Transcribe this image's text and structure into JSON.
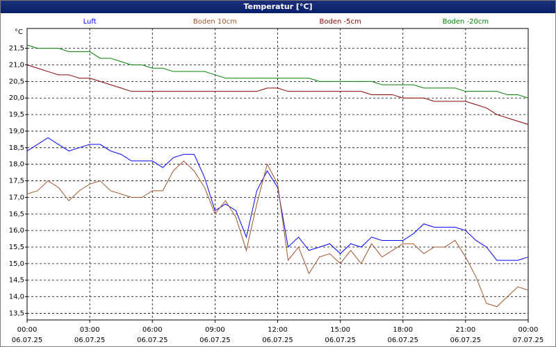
{
  "chart_data": {
    "type": "line",
    "title": "Temperatur [°C]",
    "y_unit": "°C",
    "x": [
      0,
      0.5,
      1,
      1.5,
      2,
      2.5,
      3,
      3.5,
      4,
      4.5,
      5,
      5.5,
      6,
      6.5,
      7,
      7.5,
      8,
      8.5,
      9,
      9.5,
      10,
      10.5,
      11,
      11.5,
      12,
      12.5,
      13,
      13.5,
      14,
      14.5,
      15,
      15.5,
      16,
      16.5,
      17,
      17.5,
      18,
      18.5,
      19,
      19.5,
      20,
      20.5,
      21,
      21.5,
      22,
      22.5,
      23,
      23.5,
      24
    ],
    "xlim": [
      0,
      24
    ],
    "xticks": [
      {
        "value": 0,
        "label": "00:00"
      },
      {
        "value": 3,
        "label": "03:00"
      },
      {
        "value": 6,
        "label": "06:00"
      },
      {
        "value": 9,
        "label": "09:00"
      },
      {
        "value": 12,
        "label": "12:00"
      },
      {
        "value": 15,
        "label": "15:00"
      },
      {
        "value": 18,
        "label": "18:00"
      },
      {
        "value": 21,
        "label": "21:00"
      },
      {
        "value": 24,
        "label": "00:00"
      }
    ],
    "xtick_dates": [
      "06.07.25",
      "06.07.25",
      "06.07.25",
      "06.07.25",
      "06.07.25",
      "06.07.25",
      "06.07.25",
      "06.07.25",
      "07.07.25"
    ],
    "ylim": [
      13.3,
      22.1
    ],
    "yticks": [
      {
        "value": 13.5,
        "label": "13,5"
      },
      {
        "value": 14,
        "label": "14,0"
      },
      {
        "value": 14.5,
        "label": "14,5"
      },
      {
        "value": 15,
        "label": "15,0"
      },
      {
        "value": 15.5,
        "label": "15,5"
      },
      {
        "value": 16,
        "label": "16,0"
      },
      {
        "value": 16.5,
        "label": "16,5"
      },
      {
        "value": 17,
        "label": "17,0"
      },
      {
        "value": 17.5,
        "label": "17,5"
      },
      {
        "value": 18,
        "label": "18,0"
      },
      {
        "value": 18.5,
        "label": "18,5"
      },
      {
        "value": 19,
        "label": "19,0"
      },
      {
        "value": 19.5,
        "label": "19,5"
      },
      {
        "value": 20,
        "label": "20,0"
      },
      {
        "value": 20.5,
        "label": "20,5"
      },
      {
        "value": 21,
        "label": "21,0"
      },
      {
        "value": 21.5,
        "label": "21,5"
      }
    ],
    "grid": true,
    "series": [
      {
        "name": "Luft",
        "color": "#0000ff",
        "values": [
          18.4,
          18.6,
          18.8,
          18.6,
          18.4,
          18.5,
          18.6,
          18.6,
          18.4,
          18.3,
          18.1,
          18.1,
          18.1,
          17.9,
          18.2,
          18.3,
          18.3,
          17.6,
          16.6,
          16.8,
          16.6,
          15.8,
          17.2,
          17.8,
          17.3,
          15.5,
          15.8,
          15.4,
          15.5,
          15.6,
          15.3,
          15.6,
          15.5,
          15.8,
          15.7,
          15.7,
          15.7,
          15.9,
          16.2,
          16.1,
          16.1,
          16.1,
          16.0,
          15.7,
          15.5,
          15.1,
          15.1,
          15.1,
          15.2
        ]
      },
      {
        "name": "Boden 10cm",
        "color": "#a0522d",
        "values": [
          17.1,
          17.2,
          17.5,
          17.3,
          16.9,
          17.2,
          17.4,
          17.5,
          17.2,
          17.1,
          17.0,
          17.0,
          17.2,
          17.2,
          17.8,
          18.1,
          17.8,
          17.3,
          16.5,
          16.9,
          16.4,
          15.4,
          16.8,
          18.0,
          17.4,
          15.1,
          15.5,
          14.7,
          15.2,
          15.3,
          15.0,
          15.4,
          15.0,
          15.6,
          15.2,
          15.4,
          15.6,
          15.6,
          15.3,
          15.5,
          15.5,
          15.7,
          15.2,
          14.6,
          13.8,
          13.7,
          14.0,
          14.3,
          14.2
        ]
      },
      {
        "name": "Boden -5cm",
        "color": "#8b0000",
        "values": [
          21.0,
          20.9,
          20.8,
          20.7,
          20.7,
          20.6,
          20.6,
          20.5,
          20.4,
          20.3,
          20.2,
          20.2,
          20.2,
          20.2,
          20.2,
          20.2,
          20.2,
          20.2,
          20.2,
          20.2,
          20.2,
          20.2,
          20.2,
          20.3,
          20.3,
          20.2,
          20.2,
          20.2,
          20.2,
          20.2,
          20.2,
          20.2,
          20.2,
          20.1,
          20.1,
          20.1,
          20.0,
          20.0,
          20.0,
          19.9,
          19.9,
          19.9,
          19.9,
          19.8,
          19.7,
          19.5,
          19.4,
          19.3,
          19.2
        ]
      },
      {
        "name": "Boden -20cm",
        "color": "#008000",
        "values": [
          21.6,
          21.5,
          21.5,
          21.5,
          21.4,
          21.4,
          21.4,
          21.2,
          21.2,
          21.1,
          21.0,
          21.0,
          20.9,
          20.9,
          20.8,
          20.8,
          20.8,
          20.8,
          20.7,
          20.6,
          20.6,
          20.6,
          20.6,
          20.6,
          20.6,
          20.6,
          20.6,
          20.6,
          20.5,
          20.5,
          20.5,
          20.5,
          20.5,
          20.5,
          20.4,
          20.4,
          20.4,
          20.4,
          20.3,
          20.3,
          20.3,
          20.3,
          20.2,
          20.2,
          20.2,
          20.2,
          20.1,
          20.1,
          20.0
        ]
      }
    ]
  }
}
